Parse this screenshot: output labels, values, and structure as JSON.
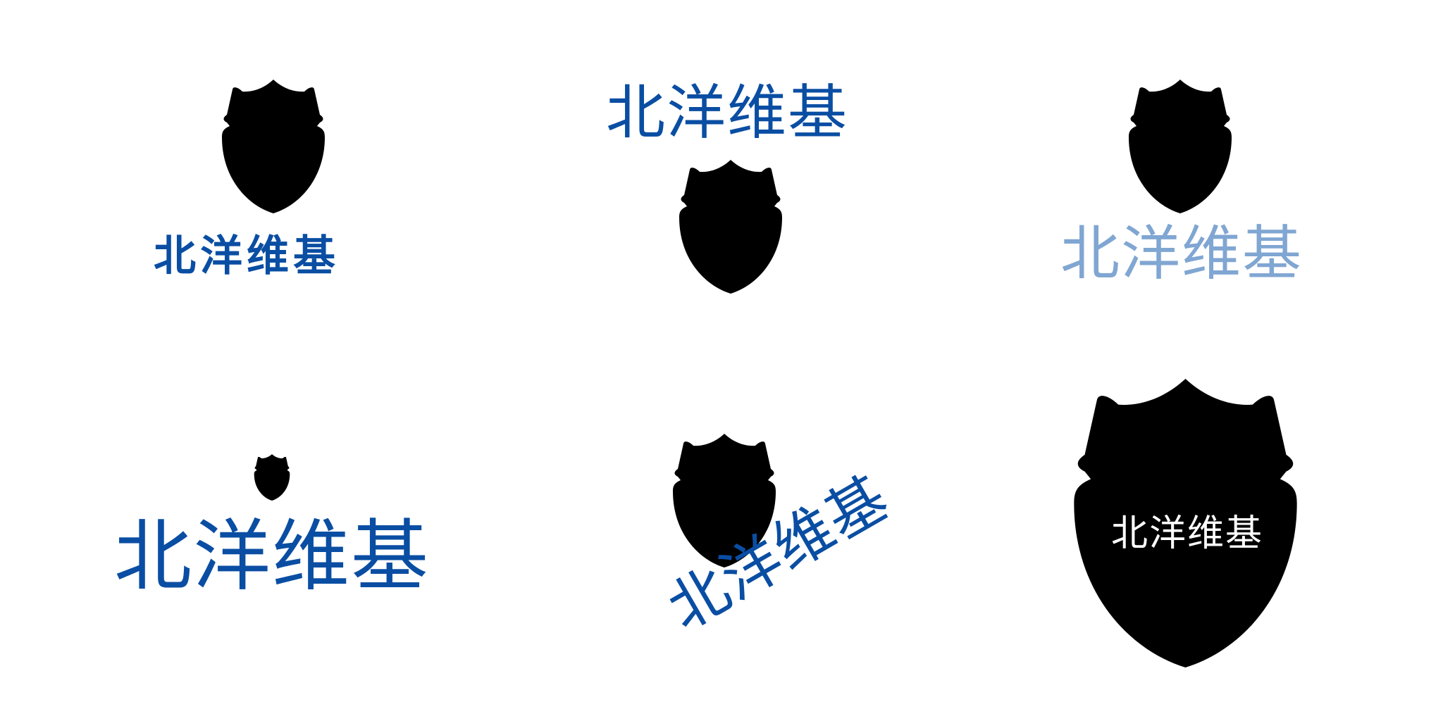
{
  "colors": {
    "brand_blue": "#0a4ea3",
    "light_blue": "#80a6d2",
    "on_shield_text": "#ffffff"
  },
  "icons": {
    "shield": "shield-icon"
  },
  "variants": [
    {
      "layout": "shield-above-bold-wordmark",
      "wordmark": "北洋维基",
      "color": "#0a4ea3"
    },
    {
      "layout": "wordmark-above-shield",
      "wordmark": "北洋维基",
      "color": "#0a4ea3"
    },
    {
      "layout": "shield-above-wordmark-light",
      "wordmark": "北洋维基",
      "color": "#80a6d2"
    },
    {
      "layout": "small-shield-large-wordmark",
      "wordmark": "北洋维基",
      "color": "#0a4ea3"
    },
    {
      "layout": "shield-with-rotated-wordmark",
      "wordmark": "北洋维基",
      "color": "#0a4ea3"
    },
    {
      "layout": "wordmark-inside-shield",
      "wordmark": "北洋维基",
      "color": "#0a4ea3"
    }
  ]
}
